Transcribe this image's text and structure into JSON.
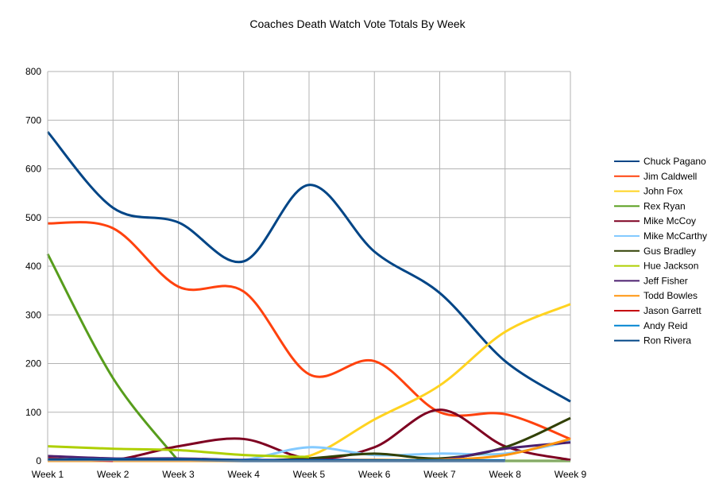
{
  "chart_data": {
    "type": "line",
    "title": "Coaches Death Watch Vote Totals By Week",
    "xlabel": "",
    "ylabel": "",
    "categories": [
      "Week 1",
      "Week 2",
      "Week 3",
      "Week 4",
      "Week 5",
      "Week 6",
      "Week 7",
      "Week 8",
      "Week 9"
    ],
    "ylim": [
      0,
      800
    ],
    "yticks": [
      0,
      100,
      200,
      300,
      400,
      500,
      600,
      700,
      800
    ],
    "grid": true,
    "smooth": true,
    "legend": "right",
    "series": [
      {
        "name": "Chuck Pagano",
        "color": "#004586",
        "values": [
          676,
          520,
          490,
          410,
          567,
          430,
          345,
          205,
          122
        ]
      },
      {
        "name": "Jim Caldwell",
        "color": "#ff420e",
        "values": [
          488,
          478,
          358,
          348,
          178,
          205,
          100,
          96,
          45
        ]
      },
      {
        "name": "John Fox",
        "color": "#ffd320",
        "values": [
          0,
          0,
          0,
          0,
          10,
          85,
          155,
          265,
          322
        ]
      },
      {
        "name": "Rex Ryan",
        "color": "#579d1c",
        "values": [
          425,
          170,
          0,
          null,
          null,
          null,
          null,
          0,
          0
        ]
      },
      {
        "name": "Mike McCoy",
        "color": "#7e0021",
        "values": [
          5,
          2,
          30,
          45,
          5,
          28,
          105,
          30,
          2
        ]
      },
      {
        "name": "Mike McCarthy",
        "color": "#83caff",
        "values": [
          0,
          0,
          0,
          2,
          28,
          12,
          15,
          15,
          40
        ]
      },
      {
        "name": "Gus Bradley",
        "color": "#314004",
        "values": [
          0,
          0,
          0,
          0,
          5,
          15,
          5,
          28,
          88
        ]
      },
      {
        "name": "Hue Jackson",
        "color": "#aecf00",
        "values": [
          30,
          25,
          22,
          12,
          8,
          null,
          null,
          null,
          null
        ]
      },
      {
        "name": "Jeff Fisher",
        "color": "#4b1f6f",
        "values": [
          10,
          5,
          5,
          2,
          2,
          2,
          2,
          25,
          38
        ]
      },
      {
        "name": "Todd Bowles",
        "color": "#ff950e",
        "values": [
          0,
          0,
          0,
          0,
          0,
          2,
          2,
          12,
          45
        ]
      },
      {
        "name": "Jason Garrett",
        "color": "#c5000b",
        "values": [
          5,
          0,
          null,
          null,
          null,
          null,
          null,
          null,
          null
        ]
      },
      {
        "name": "Andy Reid",
        "color": "#0084d1",
        "values": [
          3,
          3,
          3,
          1,
          1,
          1,
          1,
          1,
          null
        ]
      },
      {
        "name": "Ron Rivera",
        "color": "#004586",
        "values": [
          2,
          2,
          2,
          0,
          0,
          0,
          0,
          0,
          null
        ]
      }
    ]
  }
}
